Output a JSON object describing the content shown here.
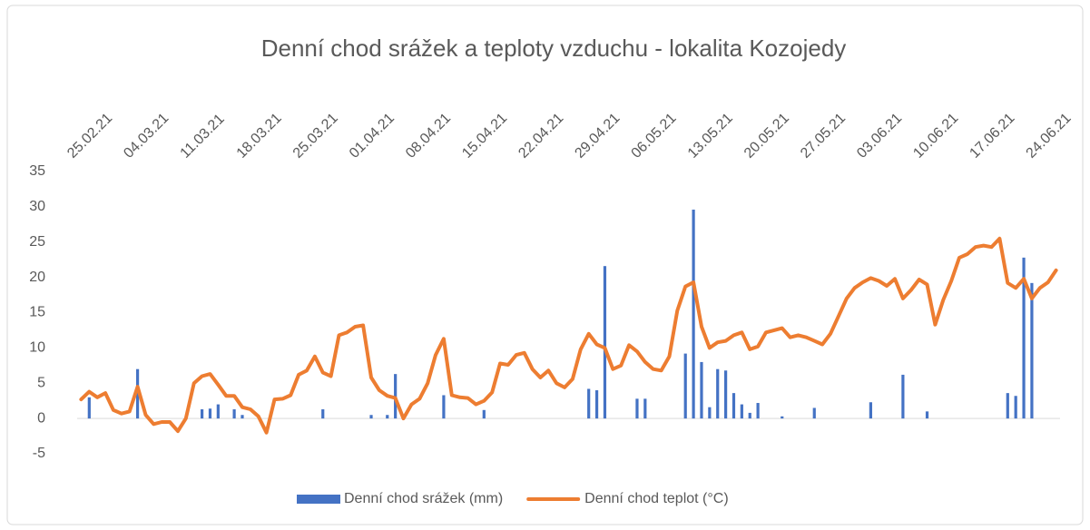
{
  "chart_data": {
    "type": "bar+line",
    "title": "Denní chod srážek a teploty vzduchu - lokalita Kozojedy",
    "categories": [
      "25.02.21",
      null,
      null,
      null,
      null,
      null,
      null,
      "04.03.21",
      null,
      null,
      null,
      null,
      null,
      null,
      "11.03.21",
      null,
      null,
      null,
      null,
      null,
      null,
      "18.03.21",
      null,
      null,
      null,
      null,
      null,
      null,
      "25.03.21",
      null,
      null,
      null,
      null,
      null,
      null,
      "01.04.21",
      null,
      null,
      null,
      null,
      null,
      null,
      "08.04.21",
      null,
      null,
      null,
      null,
      null,
      null,
      "15.04.21",
      null,
      null,
      null,
      null,
      null,
      null,
      "22.04.21",
      null,
      null,
      null,
      null,
      null,
      null,
      "29.04.21",
      null,
      null,
      null,
      null,
      null,
      null,
      "06.05.21",
      null,
      null,
      null,
      null,
      null,
      null,
      "13.05.21",
      null,
      null,
      null,
      null,
      null,
      null,
      "20.05.21",
      null,
      null,
      null,
      null,
      null,
      null,
      "27.05.21",
      null,
      null,
      null,
      null,
      null,
      null,
      "03.06.21",
      null,
      null,
      null,
      null,
      null,
      null,
      "10.06.21",
      null,
      null,
      null,
      null,
      null,
      null,
      "17.06.21",
      null,
      null,
      null,
      null,
      null,
      null,
      "24.06.21",
      null,
      null
    ],
    "series": [
      {
        "name": "Denní chod srážek (mm)",
        "type": "bar",
        "color": "#4472c4",
        "values": [
          0,
          3.0,
          0,
          0,
          0,
          0,
          0,
          7.0,
          0,
          0,
          0,
          0,
          0,
          0,
          0,
          1.3,
          1.4,
          2.0,
          0,
          1.3,
          0.5,
          0,
          0,
          0,
          0,
          0,
          0,
          0,
          0,
          0,
          1.3,
          0,
          0,
          0,
          0,
          0,
          0.5,
          0,
          0.5,
          6.3,
          0,
          0,
          0,
          0,
          0,
          3.3,
          0,
          0,
          0,
          0,
          1.2,
          0,
          0,
          0,
          0,
          0,
          0,
          0,
          0,
          0,
          0,
          0,
          0,
          4.2,
          4.0,
          21.6,
          0,
          0,
          0,
          2.8,
          2.8,
          0,
          0,
          0,
          0,
          9.2,
          29.6,
          8.0,
          1.6,
          7.0,
          6.8,
          3.6,
          2.0,
          0.8,
          2.2,
          0,
          0,
          0.3,
          0,
          0,
          0,
          1.5,
          0,
          0,
          0,
          0,
          0,
          0,
          2.3,
          0,
          0,
          0,
          6.2,
          0,
          0,
          1.0,
          0,
          0,
          0,
          0,
          0,
          0,
          0,
          0,
          0,
          3.6,
          3.2,
          22.8,
          19.2,
          0,
          0,
          0
        ]
      },
      {
        "name": "Denní chod teplot (°C)",
        "type": "line",
        "color": "#ed7d31",
        "values": [
          2.7,
          3.8,
          3.0,
          3.6,
          1.2,
          0.7,
          1.0,
          4.5,
          0.5,
          -0.8,
          -0.5,
          -0.5,
          -1.8,
          0,
          5.0,
          6.0,
          6.3,
          4.8,
          3.2,
          3.2,
          1.6,
          1.3,
          0.3,
          -2.0,
          2.7,
          2.8,
          3.3,
          6.2,
          6.8,
          8.8,
          6.5,
          6.0,
          11.8,
          12.2,
          13.0,
          13.2,
          5.8,
          4.0,
          3.2,
          2.9,
          0.0,
          2.0,
          2.8,
          5.0,
          9.0,
          11.3,
          3.3,
          3.0,
          2.9,
          2.0,
          2.5,
          3.7,
          7.8,
          7.6,
          9.0,
          9.3,
          7.0,
          5.8,
          6.8,
          5.0,
          4.4,
          5.6,
          9.8,
          12.0,
          10.5,
          10.0,
          7.0,
          7.5,
          10.4,
          9.5,
          8.0,
          7.0,
          6.8,
          8.8,
          15.3,
          18.7,
          19.3,
          13.0,
          10.0,
          10.8,
          11.0,
          11.8,
          12.2,
          9.8,
          10.2,
          12.2,
          12.5,
          12.8,
          11.5,
          11.8,
          11.5,
          11.0,
          10.5,
          12.0,
          14.5,
          17.0,
          18.5,
          19.3,
          19.9,
          19.5,
          18.8,
          19.8,
          17.0,
          18.2,
          19.7,
          19.0,
          13.3,
          16.8,
          19.5,
          22.8,
          23.3,
          24.3,
          24.5,
          24.3,
          25.5,
          19.2,
          18.5,
          19.8,
          17.0,
          18.5,
          19.3,
          21.0
        ]
      }
    ],
    "ylim": [
      -5,
      35
    ],
    "yticks": [
      -5,
      0,
      5,
      10,
      15,
      20,
      25,
      30,
      35
    ],
    "grid": false,
    "legend": "bottom"
  }
}
